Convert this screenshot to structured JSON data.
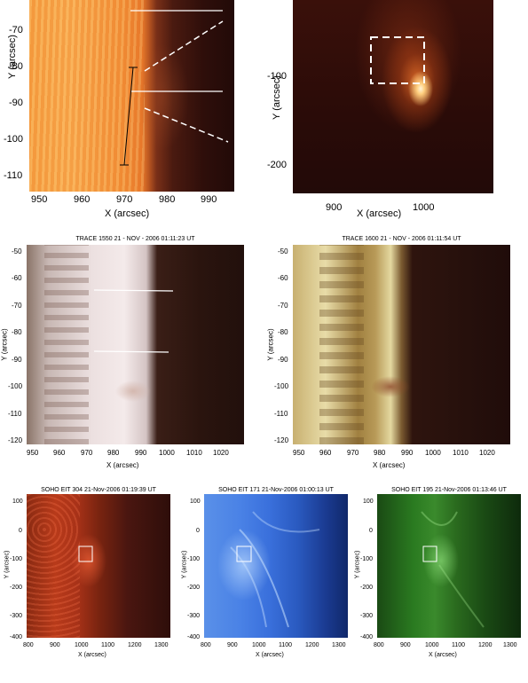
{
  "panels": {
    "a": {
      "ylabel": "Y (arcsec)",
      "xlabel": "X (arcsec)",
      "yticks": [
        "-70",
        "-80",
        "-90",
        "-100",
        "-110"
      ],
      "xticks": [
        "950",
        "960",
        "970",
        "980",
        "990"
      ]
    },
    "b": {
      "ylabel": "Y (arcsec)",
      "xlabel": "X (arcsec)",
      "yticks": [
        "-100",
        "-200"
      ],
      "xticks": [
        "900",
        "1000"
      ]
    },
    "c": {
      "title": "TRACE 1550 21 - NOV - 2006 01:11:23 UT",
      "ylabel": "Y (arcsec)",
      "xlabel": "X (arcsec)",
      "yticks": [
        "-50",
        "-60",
        "-70",
        "-80",
        "-90",
        "-100",
        "-110",
        "-120"
      ],
      "xticks": [
        "950",
        "960",
        "970",
        "980",
        "990",
        "1000",
        "1010",
        "1020"
      ]
    },
    "d": {
      "title": "TRACE 1600 21 - NOV - 2006 01:11:54 UT",
      "ylabel": "Y (arcsec)",
      "xlabel": "X (arcsec)",
      "yticks": [
        "-50",
        "-60",
        "-70",
        "-80",
        "-90",
        "-100",
        "-110",
        "-120"
      ],
      "xticks": [
        "950",
        "960",
        "970",
        "980",
        "990",
        "1000",
        "1010",
        "1020"
      ]
    },
    "e": {
      "title": "SOHO EIT 304 21-Nov-2006 01:19:39 UT",
      "ylabel": "Y (arcsec)",
      "xlabel": "X (arcsec)",
      "yticks": [
        "100",
        "0",
        "-100",
        "-200",
        "-300",
        "-400"
      ],
      "xticks": [
        "800",
        "900",
        "1000",
        "1100",
        "1200",
        "1300"
      ]
    },
    "f": {
      "title": "SOHO EIT 171 21-Nov-2006 01:00:13 UT",
      "ylabel": "Y (arcsec)",
      "xlabel": "X (arcsec)",
      "yticks": [
        "100",
        "0",
        "-100",
        "-200",
        "-300",
        "-400"
      ],
      "xticks": [
        "800",
        "900",
        "1000",
        "1100",
        "1200",
        "1300"
      ]
    },
    "g": {
      "title": "SOHO EIT 195 21-Nov-2006 01:13:46 UT",
      "ylabel": "Y (arcsec)",
      "xlabel": "X (arcsec)",
      "yticks": [
        "100",
        "0",
        "-100",
        "-200",
        "-300",
        "-400"
      ],
      "xticks": [
        "800",
        "900",
        "1000",
        "1100",
        "1200",
        "1300"
      ]
    }
  },
  "colors": {
    "trace_orange": "#f08a28",
    "trace_1550": "#e8dcdc",
    "trace_1600": "#d8c080",
    "eit_304": "#b83a1a",
    "eit_171": "#3a7ae8",
    "eit_195": "#2a7a20"
  }
}
